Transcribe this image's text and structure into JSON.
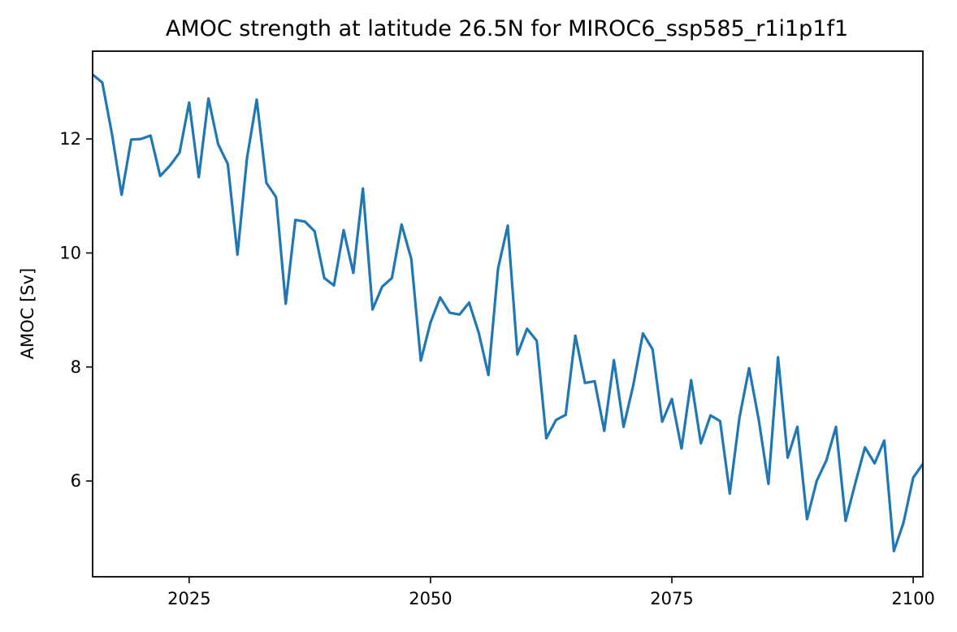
{
  "chart_data": {
    "type": "line",
    "title": "AMOC strength at latitude 26.5N for MIROC6_ssp585_r1i1p1f1",
    "xlabel": "",
    "ylabel": "AMOC [Sv]",
    "xlim": [
      2015,
      2101
    ],
    "ylim": [
      4.32,
      13.54
    ],
    "xticks": [
      2025,
      2050,
      2075,
      2100
    ],
    "yticks": [
      6,
      8,
      10,
      12
    ],
    "grid": false,
    "color": "#1f77b4",
    "x": [
      2015,
      2016,
      2017,
      2018,
      2019,
      2020,
      2021,
      2022,
      2023,
      2024,
      2025,
      2026,
      2027,
      2028,
      2029,
      2030,
      2031,
      2032,
      2033,
      2034,
      2035,
      2036,
      2037,
      2038,
      2039,
      2040,
      2041,
      2042,
      2043,
      2044,
      2045,
      2046,
      2047,
      2048,
      2049,
      2050,
      2051,
      2052,
      2053,
      2054,
      2055,
      2056,
      2057,
      2058,
      2059,
      2060,
      2061,
      2062,
      2063,
      2064,
      2065,
      2066,
      2067,
      2068,
      2069,
      2070,
      2071,
      2072,
      2073,
      2074,
      2075,
      2076,
      2077,
      2078,
      2079,
      2080,
      2081,
      2082,
      2083,
      2084,
      2085,
      2086,
      2087,
      2088,
      2089,
      2090,
      2091,
      2092,
      2093,
      2094,
      2095,
      2096,
      2097,
      2098,
      2099,
      2100,
      2101
    ],
    "y": [
      13.13,
      12.99,
      12.09,
      11.02,
      11.99,
      12.0,
      12.06,
      11.35,
      11.53,
      11.76,
      12.64,
      11.33,
      12.71,
      11.91,
      11.56,
      9.97,
      11.67,
      12.69,
      11.23,
      10.98,
      9.11,
      10.58,
      10.55,
      10.38,
      9.56,
      9.43,
      10.4,
      9.65,
      11.13,
      9.01,
      9.41,
      9.56,
      10.5,
      9.9,
      8.11,
      8.78,
      9.22,
      8.95,
      8.92,
      9.13,
      8.6,
      7.86,
      9.73,
      10.48,
      8.22,
      8.67,
      8.46,
      6.75,
      7.07,
      7.16,
      8.55,
      7.72,
      7.75,
      6.88,
      8.12,
      6.95,
      7.68,
      8.59,
      8.31,
      7.04,
      7.44,
      6.57,
      7.77,
      6.66,
      7.15,
      7.05,
      5.78,
      7.11,
      7.98,
      7.07,
      5.95,
      8.17,
      6.41,
      6.95,
      5.33,
      6.0,
      6.36,
      6.95,
      5.3,
      5.96,
      6.59,
      6.31,
      6.71,
      4.77,
      5.27,
      6.06,
      6.3
    ]
  }
}
